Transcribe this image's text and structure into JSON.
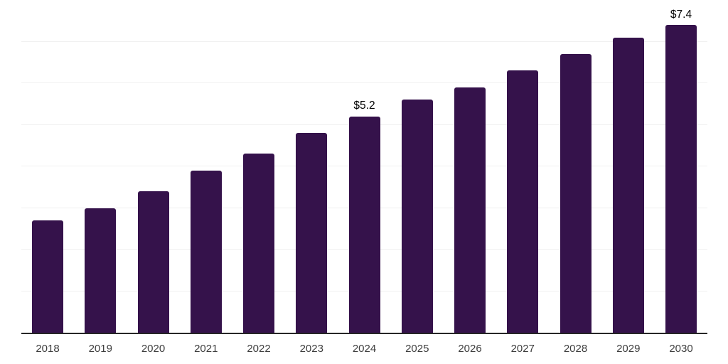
{
  "chart_data": {
    "type": "bar",
    "categories": [
      "2018",
      "2019",
      "2020",
      "2021",
      "2022",
      "2023",
      "2024",
      "2025",
      "2026",
      "2027",
      "2028",
      "2029",
      "2030"
    ],
    "values": [
      2.7,
      3.0,
      3.4,
      3.9,
      4.3,
      4.8,
      5.2,
      5.6,
      5.9,
      6.3,
      6.7,
      7.1,
      7.4
    ],
    "data_labels": {
      "2024": "$5.2",
      "2030": "$7.4"
    },
    "xlabel": "",
    "ylabel": "",
    "ylim": [
      0,
      8
    ],
    "grid_step": 1,
    "grid": true,
    "legend": false,
    "colors": {
      "bar": "#35124b",
      "axis": "#262626",
      "gridline": "#f0f0f0",
      "tick_label": "#3d3d3d",
      "data_label": "#000000",
      "background": "#ffffff"
    }
  }
}
